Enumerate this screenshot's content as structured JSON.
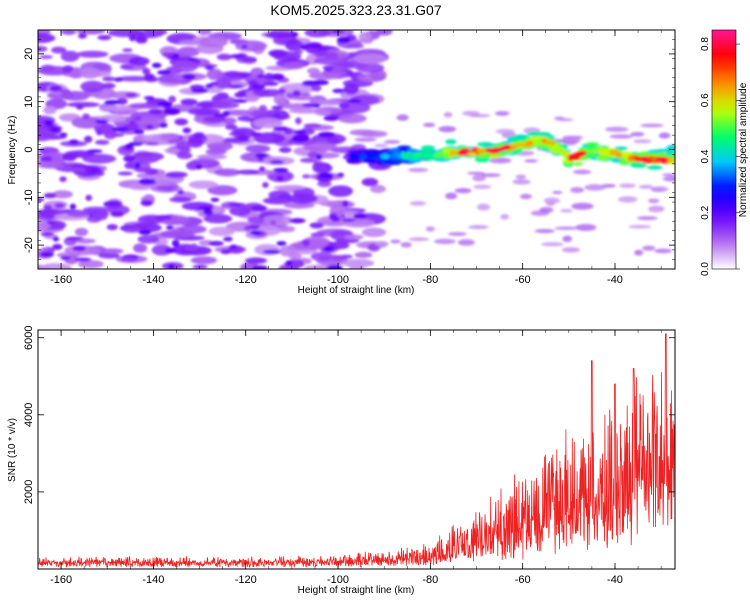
{
  "chart_data": [
    {
      "type": "heatmap",
      "title": "KOM5.2025.323.23.31.G07",
      "xlabel": "Height of straight line (km)",
      "ylabel": "Frequency (Hz)",
      "xlim": [
        -165,
        -27
      ],
      "ylim": [
        -25,
        25
      ],
      "x_ticks": [
        -160,
        -140,
        -120,
        -100,
        -80,
        -60,
        -40
      ],
      "y_ticks": [
        -20,
        -10,
        0,
        10,
        20
      ],
      "colorbar": {
        "label": "Normalized spectral amplitude",
        "range": [
          0,
          0.85
        ],
        "ticks": [
          "0.0",
          "0.2",
          "0.4",
          "0.6",
          "0.8"
        ],
        "tick_values": [
          0.0,
          0.2,
          0.4,
          0.6,
          0.8
        ],
        "colors": [
          "#ffffff",
          "#b46ef0",
          "#6600ff",
          "#0000ff",
          "#00c8ff",
          "#00ff64",
          "#c8ff00",
          "#ff8c00",
          "#ff0000",
          "#ff1493"
        ]
      },
      "noise_region": {
        "x_range": [
          -165,
          -95
        ],
        "y_range": [
          -25,
          25
        ],
        "amplitude": 0.15
      },
      "signal_track": {
        "points": [
          [
            -97,
            -1.5
          ],
          [
            -90,
            -1.5
          ],
          [
            -80,
            -1
          ],
          [
            -70,
            -0.5
          ],
          [
            -65,
            0
          ],
          [
            -60,
            1
          ],
          [
            -55,
            2
          ],
          [
            -50,
            -2
          ],
          [
            -45,
            0
          ],
          [
            -40,
            -1
          ],
          [
            -35,
            -2
          ],
          [
            -30,
            -2
          ],
          [
            -27,
            -2
          ]
        ],
        "peak_amplitude": 0.85
      }
    },
    {
      "type": "line",
      "xlabel": "Height of straight line (km)",
      "ylabel": "SNR (10 * v/v)",
      "xlim": [
        -165,
        -27
      ],
      "ylim": [
        0,
        6200
      ],
      "x_ticks": [
        -160,
        -140,
        -120,
        -100,
        -80,
        -60,
        -40
      ],
      "y_ticks": [
        2000,
        4000,
        6000
      ],
      "series": [
        {
          "name": "SNR",
          "color": "#ee2222",
          "envelope": [
            {
              "x": -165,
              "base": 150,
              "spread": 150
            },
            {
              "x": -100,
              "base": 150,
              "spread": 200
            },
            {
              "x": -80,
              "base": 250,
              "spread": 400
            },
            {
              "x": -70,
              "base": 600,
              "spread": 1000
            },
            {
              "x": -60,
              "base": 800,
              "spread": 1800
            },
            {
              "x": -50,
              "base": 1200,
              "spread": 2500
            },
            {
              "x": -40,
              "base": 1600,
              "spread": 2800
            },
            {
              "x": -30,
              "base": 2500,
              "spread": 3500
            },
            {
              "x": -27,
              "base": 3000,
              "spread": 2500
            }
          ],
          "spikes": [
            {
              "x": -45,
              "y": 5400
            },
            {
              "x": -40,
              "y": 4800
            },
            {
              "x": -36,
              "y": 5200
            },
            {
              "x": -29,
              "y": 6100
            }
          ]
        }
      ]
    }
  ]
}
